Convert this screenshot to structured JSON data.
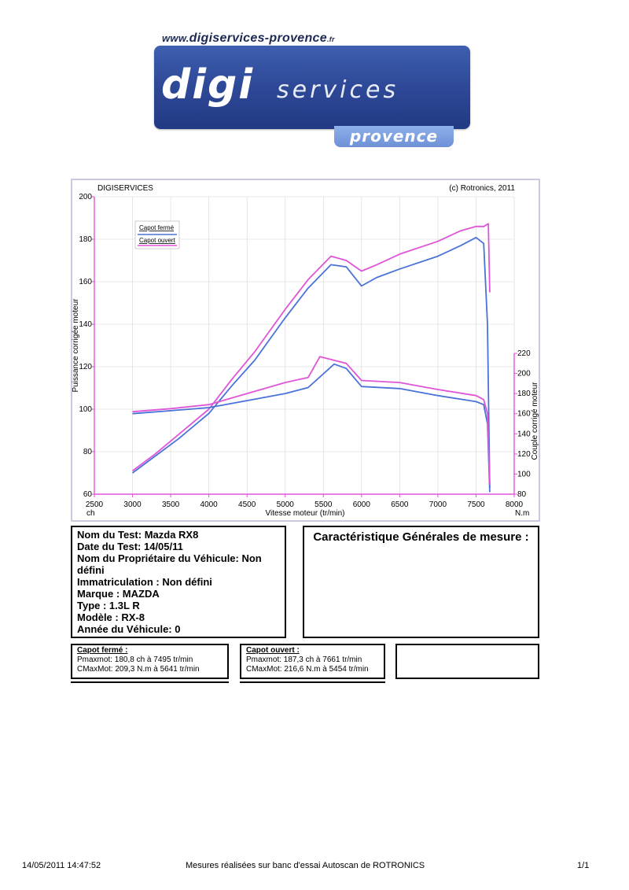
{
  "header": {
    "url_prefix": "www.",
    "url_main": "digiservices-provence",
    "url_suffix": ".fr",
    "logo_main": "digi",
    "logo_services": "services",
    "logo_region": "provence"
  },
  "chart_header": {
    "left": "DIGISERVICES",
    "right": "(c) Rotronics, 2011"
  },
  "chart_data": {
    "type": "line",
    "xlabel": "Vitesse moteur (tr/min)",
    "x_unit_left": "ch",
    "x_unit_right": "N.m",
    "ylabel_left": "Puissance corrigée moteur",
    "ylabel_right": "Couple corrigé moteur",
    "xlim": [
      2500,
      8000
    ],
    "ylim_left": [
      60,
      200
    ],
    "ylim_right": [
      80,
      220
    ],
    "x_ticks": [
      2500,
      3000,
      3500,
      4000,
      4500,
      5000,
      5500,
      6000,
      6500,
      7000,
      7500,
      8000
    ],
    "y_left_ticks": [
      60,
      80,
      100,
      120,
      140,
      160,
      180,
      200
    ],
    "y_right_ticks": [
      80,
      100,
      120,
      140,
      160,
      180,
      200,
      220
    ],
    "grid": true,
    "legend": [
      "Capot fermé",
      "Capot ouvert"
    ],
    "colors": {
      "closed": "#4a72d8",
      "open": "#e055d8"
    },
    "series": [
      {
        "name": "Capot fermé",
        "kind": "power",
        "axis": "left",
        "x": [
          3000,
          3300,
          3600,
          4000,
          4300,
          4600,
          5000,
          5300,
          5600,
          5800,
          6000,
          6200,
          6500,
          7000,
          7300,
          7500,
          7600,
          7650,
          7680
        ],
        "y": [
          70,
          78,
          86,
          98,
          111,
          123,
          143,
          157,
          168,
          167,
          158,
          162,
          166,
          172,
          177,
          180.8,
          178,
          140,
          63
        ]
      },
      {
        "name": "Capot ouvert",
        "kind": "power",
        "axis": "left",
        "x": [
          3000,
          3300,
          3600,
          4000,
          4300,
          4600,
          5000,
          5300,
          5600,
          5800,
          6000,
          6200,
          6500,
          7000,
          7300,
          7500,
          7600,
          7661,
          7680
        ],
        "y": [
          71,
          79,
          88,
          100,
          114,
          127,
          147,
          161,
          172,
          170,
          165,
          168,
          173,
          179,
          184,
          186,
          186,
          187.3,
          155
        ]
      },
      {
        "name": "Capot fermé",
        "kind": "torque",
        "axis": "right",
        "x": [
          3000,
          3500,
          4000,
          4500,
          5000,
          5300,
          5641,
          5800,
          6000,
          6500,
          7000,
          7500,
          7600,
          7650,
          7680
        ],
        "y": [
          160,
          163,
          166,
          173,
          180,
          186,
          209.3,
          205,
          187,
          185,
          178,
          172,
          169,
          150,
          82
        ]
      },
      {
        "name": "Capot ouvert",
        "kind": "torque",
        "axis": "right",
        "x": [
          3000,
          3500,
          4000,
          4500,
          5000,
          5300,
          5454,
          5800,
          6000,
          6500,
          7000,
          7500,
          7600,
          7650,
          7680
        ],
        "y": [
          162,
          165,
          169,
          180,
          191,
          196,
          216.6,
          210,
          193,
          191,
          184,
          178,
          174,
          160,
          90
        ]
      }
    ]
  },
  "info": {
    "lines": [
      "Nom du Test: Mazda RX8",
      "Date du Test: 14/05/11",
      "Nom du Propriétaire du Véhicule: Non défini",
      "Immatriculation  : Non défini",
      "Marque  : MAZDA",
      "Type  : 1.3L R",
      "Modèle  : RX-8",
      "Année du Véhicule: 0"
    ]
  },
  "charac": {
    "title": "Caractéristique Générales de mesure :"
  },
  "results": [
    {
      "title": "Capot fermé :",
      "pmax": "Pmaxmot: 180,8 ch à 7495 tr/min",
      "cmax": "CMaxMot: 209,3 N.m à 5641 tr/min"
    },
    {
      "title": "Capot ouvert :",
      "pmax": "Pmaxmot: 187,3 ch à 7661 tr/min",
      "cmax": "CMaxMot: 216,6 N.m à 5454 tr/min"
    }
  ],
  "footer": {
    "datetime": "14/05/2011 14:47:52",
    "center": "Mesures réalisées sur banc d'essai Autoscan de ROTRONICS",
    "page": "1/1"
  }
}
